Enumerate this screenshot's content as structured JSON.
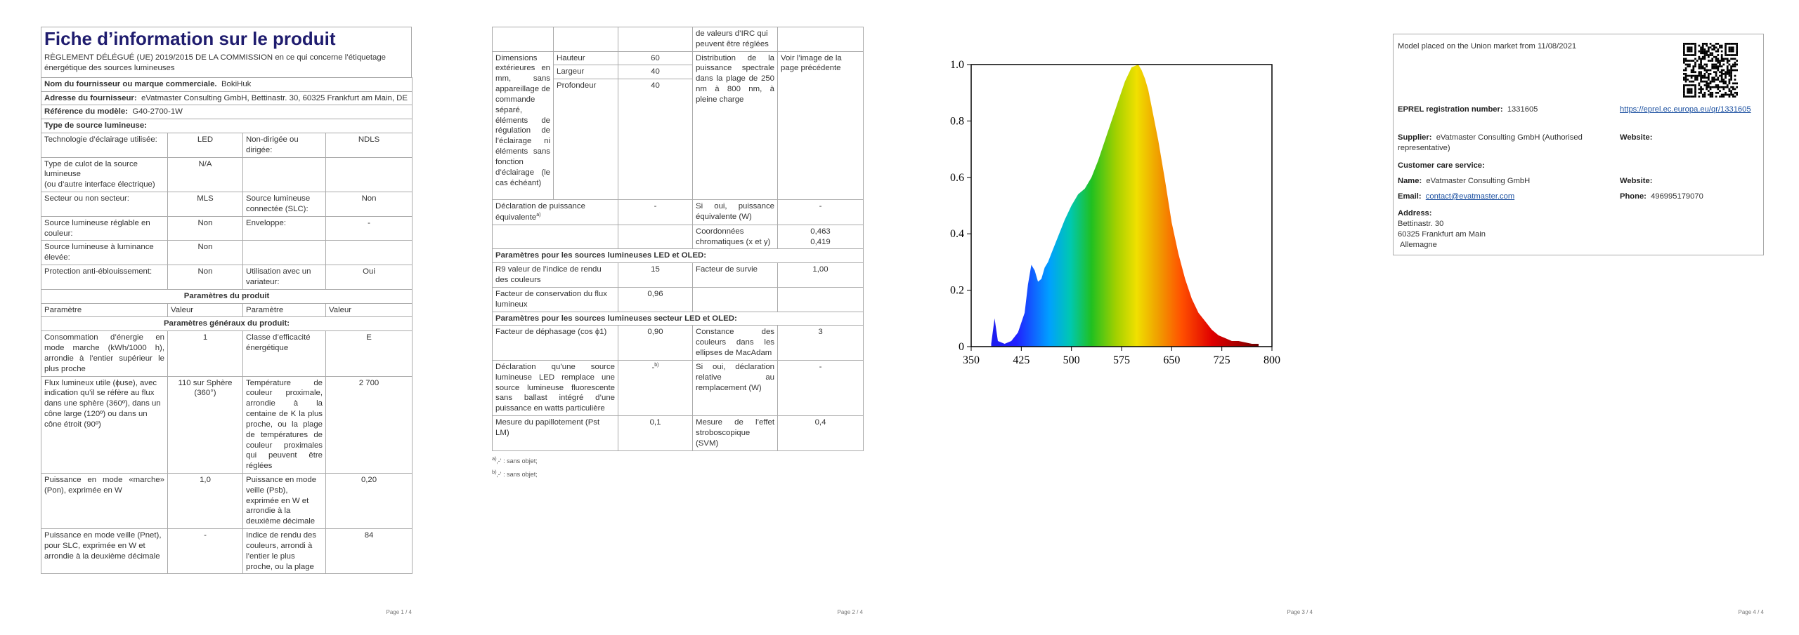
{
  "page1": {
    "title": "Fiche d’information sur le produit",
    "subtitle": "RÈGLEMENT DÉLÉGUÉ (UE) 2019/2015 DE LA COMMISSION en ce qui concerne l’étiquetage énergétique des sources lumineuses",
    "supplier_label": "Nom du fournisseur ou marque commerciale.",
    "supplier_value": "BokiHuk",
    "address_label": "Adresse du fournisseur:",
    "address_value": "eVatmaster Consulting GmbH, Bettinastr. 30, 60325 Frankfurt am Main, DE",
    "model_label": "Référence du modèle:",
    "model_value": "G40-2700-1W",
    "type_header": "Type de source lumineuse:",
    "rows": [
      {
        "l1": "Technologie d’éclairage utilisée:",
        "v1": "LED",
        "l2": "Non-dirigée ou dirigée:",
        "v2": "NDLS"
      },
      {
        "l1": "Type de culot de la source lumineuse\n(ou d’autre interface électrique)",
        "v1": "N/A",
        "l2": "",
        "v2": ""
      },
      {
        "l1": "Secteur ou non secteur:",
        "v1": "MLS",
        "l2": "Source lumineuse connectée (SLC):",
        "v2": "Non"
      },
      {
        "l1": "Source lumineuse réglable en couleur:",
        "v1": "Non",
        "l2": "Enveloppe:",
        "v2": "-"
      },
      {
        "l1": "Source lumineuse à luminance élevée:",
        "v1": "Non",
        "l2": "",
        "v2": ""
      },
      {
        "l1": "Protection anti-éblouissement:",
        "v1": "Non",
        "l2": "Utilisation avec un variateur:",
        "v2": "Oui"
      }
    ],
    "params_header": "Paramètres du produit",
    "col_param": "Paramètre",
    "col_value": "Valeur",
    "general_header": "Paramètres généraux du produit:",
    "general_rows": [
      {
        "l1": "Consommation d’énergie en mode marche (kWh/1000 h), arrondie à l’entier supérieur le plus proche",
        "v1": "1",
        "l2": "Classe d’efficacité énergétique",
        "v2": "E"
      },
      {
        "l1": "Flux lumineux utile (ɸuse), avec indication qu’il se réfère au flux dans une sphère (360º), dans un cône large (120º) ou dans un cône étroit (90º)",
        "v1": "110 sur Sphère (360°)",
        "l2": "Température de couleur proximale, arrondie à la centaine de K la plus proche, ou la plage de températures de couleur proximales qui peuvent être réglées",
        "v2": "2 700"
      },
      {
        "l1": "Puissance en mode «marche» (Pon), exprimée en W",
        "v1": "1,0",
        "l2": "Puissance en mode veille (Psb), exprimée en W et arrondie à la deuxième décimale",
        "v2": "0,20"
      },
      {
        "l1": "Puissance en mode veille (Pnet), pour SLC, exprimée en W et arrondie à la deuxième décimale",
        "v1": "-",
        "l2": "Indice de rendu des couleurs, arrondi à l’entier le plus proche, ou la plage",
        "v2": "84"
      }
    ],
    "page_num": "Page 1 / 4"
  },
  "page2": {
    "cont_text": "de valeurs d’IRC qui peuvent être réglées",
    "dim_label": "Dimensions extérieures en mm, sans appareillage de commande séparé, éléments de régulation de l’éclairage ni éléments sans fonction d’éclairage (le cas échéant)",
    "dims": [
      {
        "name": "Hauteur",
        "value": "60"
      },
      {
        "name": "Largeur",
        "value": "40"
      },
      {
        "name": "Profondeur",
        "value": "40"
      }
    ],
    "spd_label": "Distribution de la puissance spectrale dans la plage de 250 nm à 800 nm, à pleine charge",
    "spd_value": "Voir l’image de la page précédente",
    "equiv_label": "Déclaration de puissance équivalente",
    "equiv_sup": "a)",
    "equiv_value": "-",
    "equiv2_label": "Si oui, puissance équivalente (W)",
    "equiv2_value": "-",
    "chroma_label": "Coordonnées chromatiques (x et y)",
    "chroma_x": "0,463",
    "chroma_y": "0,419",
    "led_header": "Paramètres pour les sources lumineuses LED et OLED:",
    "r9_label": "R9 valeur de l’indice de rendu des couleurs",
    "r9_value": "15",
    "surv_label": "Facteur de survie",
    "surv_value": "1,00",
    "flux_label": "Facteur de conservation du flux lumineux",
    "flux_value": "0,96",
    "mains_header": "Paramètres pour les sources lumineuses secteur LED et OLED:",
    "phase_label": "Facteur de déphasage (cos ϕ1)",
    "phase_value": "0,90",
    "macadam_label": "Constance des couleurs dans les ellipses de MacAdam",
    "macadam_value": "3",
    "replace_label": "Déclaration qu’une source lumineuse LED remplace une source lumineuse fluorescente sans ballast intégré d’une puissance en watts particulière",
    "replace_value": "-",
    "replace_sup": "b)",
    "replace2_label": "Si oui, déclaration relative au remplacement (W)",
    "replace2_value": "-",
    "pst_label": "Mesure du papillotement (Pst LM)",
    "pst_value": "0,1",
    "svm_label": "Mesure de l’effet stroboscopique (SVM)",
    "svm_value": "0,4",
    "note_a_sup": "a)",
    "note_a": "‚-‘ : sans objet;",
    "note_b_sup": "b)",
    "note_b": "‚-‘ : sans objet;",
    "page_num": "Page 2 / 4"
  },
  "page3": {
    "page_num": "Page 3 / 4"
  },
  "chart_data": {
    "type": "area",
    "title": "",
    "xlabel": "",
    "ylabel": "",
    "xlim": [
      350,
      800
    ],
    "ylim": [
      0,
      1.0
    ],
    "x_ticks": [
      "350",
      "425",
      "500",
      "575",
      "650",
      "725",
      "800"
    ],
    "y_ticks": [
      "0",
      "0.2",
      "0.4",
      "0.6",
      "0.8",
      "1.0"
    ],
    "grid": false,
    "fill": "spectral rainbow",
    "x": [
      380,
      385,
      390,
      400,
      410,
      420,
      430,
      435,
      440,
      445,
      450,
      455,
      460,
      465,
      470,
      480,
      490,
      500,
      510,
      520,
      530,
      540,
      550,
      560,
      570,
      580,
      590,
      600,
      605,
      610,
      615,
      620,
      630,
      640,
      650,
      660,
      670,
      680,
      690,
      700,
      710,
      720,
      730,
      740,
      750,
      760,
      770,
      780
    ],
    "values": [
      0.01,
      0.1,
      0.02,
      0.01,
      0.02,
      0.05,
      0.12,
      0.22,
      0.29,
      0.27,
      0.23,
      0.24,
      0.28,
      0.3,
      0.33,
      0.39,
      0.45,
      0.5,
      0.54,
      0.56,
      0.6,
      0.66,
      0.73,
      0.8,
      0.87,
      0.94,
      0.99,
      1.0,
      0.98,
      0.95,
      0.91,
      0.85,
      0.73,
      0.59,
      0.44,
      0.33,
      0.24,
      0.17,
      0.12,
      0.09,
      0.06,
      0.04,
      0.03,
      0.02,
      0.02,
      0.015,
      0.01,
      0.01
    ]
  },
  "page4": {
    "placed": "Model placed on the Union market from 11/08/2021",
    "eprel_label": "EPREL registration number:",
    "eprel_value": "1331605",
    "eprel_link": "https://eprel.ec.europa.eu/qr/1331605",
    "supplier_label": "Supplier:",
    "supplier_value": "eVatmaster Consulting GmbH (Authorised representative)",
    "website_label": "Website:",
    "care_label": "Customer care service:",
    "name_label": "Name:",
    "name_value": "eVatmaster Consulting GmbH",
    "website2_label": "Website:",
    "email_label": "Email:",
    "email_value": "contact@evatmaster.com",
    "phone_label": "Phone:",
    "phone_value": "496995179070",
    "address_label": "Address:",
    "address_line1": "Bettinastr. 30",
    "address_line2": "60325 Frankfurt am Main",
    "address_line3": "Allemagne",
    "page_num": "Page 4 / 4"
  }
}
